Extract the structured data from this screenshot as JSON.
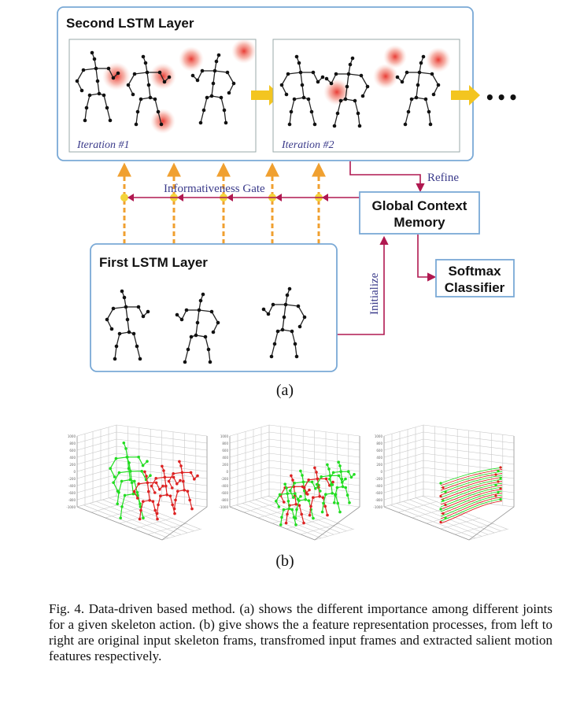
{
  "diagram": {
    "second_layer_title": "Second LSTM Layer",
    "iteration_1": "Iteration #1",
    "iteration_2": "Iteration #2",
    "ellipsis": "•••",
    "refine_label": "Refine",
    "gate_label": "Informativeness Gate",
    "memory_title_line1": "Global Context",
    "memory_title_line2": "Memory",
    "softmax_line1": "Softmax",
    "softmax_line2": "Classifier",
    "first_layer_title": "First LSTM Layer",
    "initialize_label": "Initialize",
    "sublabel_a": "(a)",
    "sublabel_b": "(b)"
  },
  "colors": {
    "box_border": "#7aa9d6",
    "gate_arrow": "#f0a030",
    "gate_node": "#f3d43a",
    "flow_line": "#b01850",
    "green_skeleton": "#22dd22",
    "red_skeleton": "#dd2222"
  },
  "caption": {
    "text": "Fig. 4.    Data-driven based method. (a) shows the different importance among different joints for a given skeleton action. (b) give shows the a feature representation processes, from left to right are original input skeleton frams, transfromed input frames and extracted salient motion features respectively."
  }
}
